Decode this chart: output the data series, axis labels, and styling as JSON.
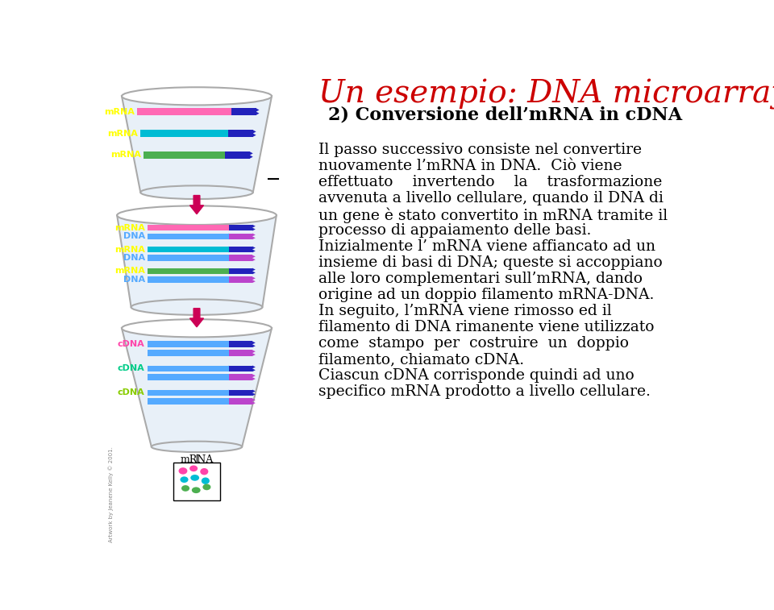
{
  "title1": "Un esempio: DNA microarray",
  "title2": "2) Conversione dell’mRNA in cDNA",
  "title1_color": "#cc0000",
  "title2_color": "#000000",
  "bg_color": "#ffffff",
  "mrna_colors": [
    "#ff69b4",
    "#00bcd4",
    "#4caf50"
  ],
  "mrna_right_color": "#2222bb",
  "dna_color": "#55aaff",
  "dna_right_color": "#bb44cc",
  "cdna_top_color": "#55aaff",
  "cdna_bot_color": "#bb44cc",
  "label_mrna_color": "#ffff00",
  "label_dna_color": "#55aaff",
  "label_cdna_colors": [
    "#ff44aa",
    "#00cc88",
    "#88cc00"
  ],
  "arrow_color": "#cc0055",
  "beaker_fill": "#e8f0f8",
  "beaker_edge": "#aaaaaa",
  "body_lines": [
    "Il passo successivo consiste nel convertire",
    "nuovamente l’mRNA in DNA.  Ciò viene",
    "effettuato    invertendo    la    trasformazione",
    "avvenuta a livello cellulare, quando il DNA di",
    "un gene è stato convertito in mRNA tramite il",
    "processo di appaiamento delle basi.",
    "Inizialmente l’ mRNA viene affiancato ad un",
    "insieme di basi di DNA; queste si accoppiano",
    "alle loro complementari sull’mRNA, dando",
    "origine ad un doppio filamento mRNA-DNA.",
    "In seguito, l’mRNA viene rimosso ed il",
    "filamento di DNA rimanente viene utilizzato",
    "come  stampo  per  costruire  un  doppio",
    "filamento, chiamato cDNA.",
    "Ciascun cDNA corrisponde quindi ad uno",
    "specifico mRNA prodotto a livello cellulare."
  ]
}
